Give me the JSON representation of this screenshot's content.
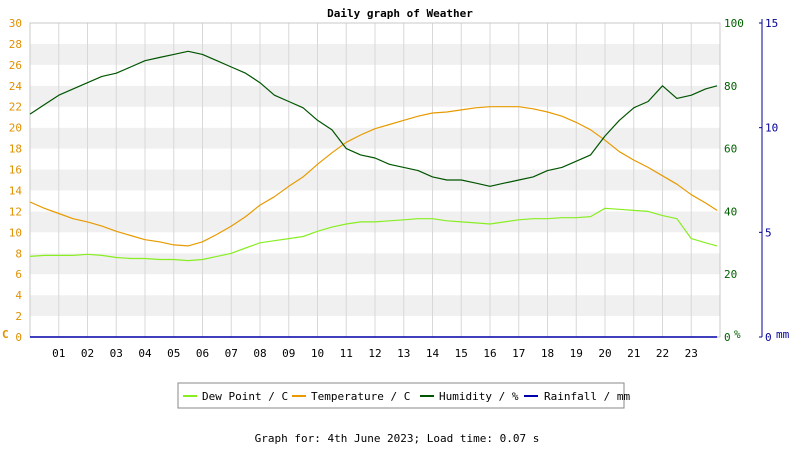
{
  "chart_data": {
    "type": "line",
    "title": "Daily graph of Weather",
    "footer": "Graph for: 4th June 2023; Load time: 0.07 s",
    "x_ticks": [
      "01",
      "02",
      "03",
      "04",
      "05",
      "06",
      "07",
      "08",
      "09",
      "10",
      "11",
      "12",
      "13",
      "14",
      "15",
      "16",
      "17",
      "18",
      "19",
      "20",
      "21",
      "22",
      "23"
    ],
    "xlim": [
      0,
      24
    ],
    "axes": {
      "left": {
        "unit_label": "C",
        "ticks": [
          "0",
          "2",
          "4",
          "6",
          "8",
          "10",
          "12",
          "14",
          "16",
          "18",
          "20",
          "22",
          "24",
          "26",
          "28",
          "30"
        ],
        "range": [
          0,
          30
        ],
        "color": "#e09000"
      },
      "right_humidity": {
        "unit_label": "%",
        "ticks": [
          "0",
          "20",
          "40",
          "60",
          "80",
          "100"
        ],
        "range": [
          0,
          100
        ],
        "color": "#006000"
      },
      "right_rain": {
        "unit_label": "mm",
        "ticks": [
          "0",
          "5",
          "10",
          "15"
        ],
        "range": [
          0,
          15
        ],
        "color": "#000099"
      }
    },
    "series": [
      {
        "name": "Dew Point / C",
        "axis": "left",
        "color": "#88ee22",
        "x": [
          0,
          0.5,
          1,
          1.5,
          2,
          2.5,
          3,
          3.5,
          4,
          4.5,
          5,
          5.5,
          6,
          6.5,
          7,
          7.5,
          8,
          8.5,
          9,
          9.5,
          10,
          10.5,
          11,
          11.5,
          12,
          12.5,
          13,
          13.5,
          14,
          14.5,
          15,
          15.5,
          16,
          16.5,
          17,
          17.5,
          18,
          18.5,
          19,
          19.5,
          20,
          20.5,
          21,
          21.5,
          22,
          22.5,
          23,
          23.5,
          23.9
        ],
        "y": [
          7.7,
          7.8,
          7.8,
          7.8,
          7.9,
          7.8,
          7.6,
          7.5,
          7.5,
          7.4,
          7.4,
          7.3,
          7.4,
          7.7,
          8.0,
          8.5,
          9.0,
          9.2,
          9.4,
          9.6,
          10.1,
          10.5,
          10.8,
          11.0,
          11.0,
          11.1,
          11.2,
          11.3,
          11.3,
          11.1,
          11.0,
          10.9,
          10.8,
          11.0,
          11.2,
          11.3,
          11.3,
          11.4,
          11.4,
          11.5,
          12.3,
          12.2,
          12.1,
          12.0,
          11.6,
          11.3,
          9.4,
          9.0,
          8.7
        ]
      },
      {
        "name": "Temperature / C",
        "axis": "left",
        "color": "#e89a00",
        "x": [
          0,
          0.5,
          1,
          1.5,
          2,
          2.5,
          3,
          3.5,
          4,
          4.5,
          5,
          5.5,
          6,
          6.5,
          7,
          7.5,
          8,
          8.5,
          9,
          9.5,
          10,
          10.5,
          11,
          11.5,
          12,
          12.5,
          13,
          13.5,
          14,
          14.5,
          15,
          15.5,
          16,
          16.5,
          17,
          17.5,
          18,
          18.5,
          19,
          19.5,
          20,
          20.5,
          21,
          21.5,
          22,
          22.5,
          23,
          23.5,
          23.9
        ],
        "y": [
          12.9,
          12.3,
          11.8,
          11.3,
          11.0,
          10.6,
          10.1,
          9.7,
          9.3,
          9.1,
          8.8,
          8.7,
          9.1,
          9.8,
          10.6,
          11.5,
          12.6,
          13.4,
          14.4,
          15.3,
          16.5,
          17.6,
          18.6,
          19.3,
          19.9,
          20.3,
          20.7,
          21.1,
          21.4,
          21.5,
          21.7,
          21.9,
          22.0,
          22.0,
          22.0,
          21.8,
          21.5,
          21.1,
          20.5,
          19.8,
          18.8,
          17.7,
          16.9,
          16.2,
          15.4,
          14.6,
          13.6,
          12.8,
          12.1
        ]
      },
      {
        "name": "Humidity / %",
        "axis": "right_humidity",
        "color": "#005500",
        "x": [
          0,
          0.5,
          1,
          1.5,
          2,
          2.5,
          3,
          3.5,
          4,
          4.5,
          5,
          5.5,
          6,
          6.5,
          7,
          7.5,
          8,
          8.5,
          9,
          9.5,
          10,
          10.5,
          11,
          11.5,
          12,
          12.5,
          13,
          13.5,
          14,
          14.5,
          15,
          15.5,
          16,
          16.5,
          17,
          17.5,
          18,
          18.5,
          19,
          19.5,
          20,
          20.5,
          21,
          21.5,
          22,
          22.5,
          23,
          23.5,
          23.9
        ],
        "y": [
          71,
          74,
          77,
          79,
          81,
          83,
          84,
          86,
          88,
          89,
          90,
          91,
          90,
          88,
          86,
          84,
          81,
          77,
          75,
          73,
          69,
          66,
          60,
          58,
          57,
          55,
          54,
          53,
          51,
          50,
          50,
          49,
          48,
          49,
          50,
          51,
          53,
          54,
          56,
          58,
          64,
          69,
          73,
          75,
          80,
          76,
          77,
          79,
          80
        ]
      },
      {
        "name": "Rainfall / mm",
        "axis": "right_rain",
        "color": "#0000aa",
        "x": [
          0,
          23.9
        ],
        "y": [
          0,
          0
        ]
      }
    ],
    "legend_position": "bottom-center",
    "grid": true
  }
}
